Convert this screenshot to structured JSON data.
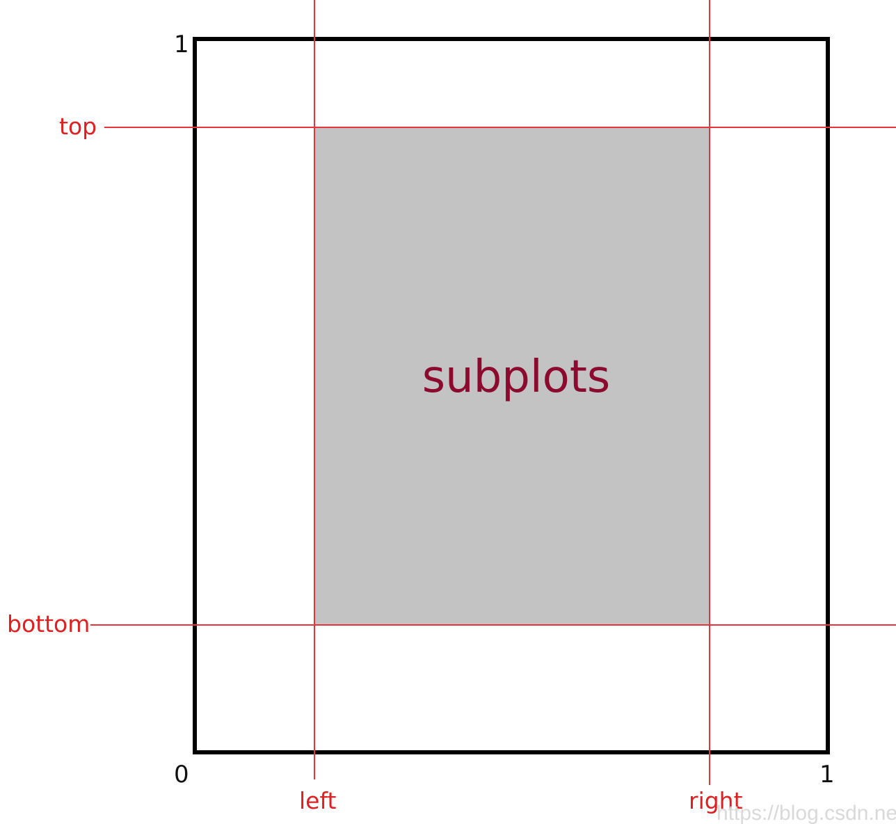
{
  "diagram": {
    "subplot_label": "subplots",
    "guides": {
      "top": "top",
      "bottom": "bottom",
      "left": "left",
      "right": "right"
    },
    "ticks": {
      "x_min": "0",
      "x_max": "1",
      "y_min": "0",
      "y_max": "1"
    },
    "watermark": "https://blog.csdn.net"
  },
  "colors": {
    "figure_border": "#000000",
    "guide_line": "#e8333a",
    "guide_text": "#e02020",
    "subplot_fill": "#c3c3c3",
    "subplot_text": "#8b0a2e"
  }
}
